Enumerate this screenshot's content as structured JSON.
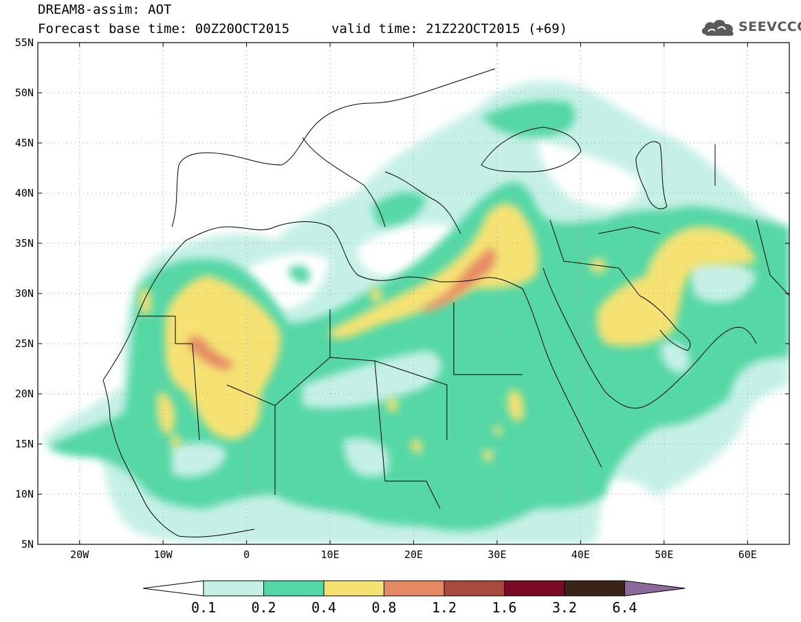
{
  "header": {
    "title_line1": "DREAM8-assim: AOT",
    "title_line2": "Forecast base time: 00Z20OCT2015",
    "valid_time": "valid time: 21Z22OCT2015 (+69)",
    "logo_text": "SEEVCCC",
    "logo_icon": "cloud-icon"
  },
  "map": {
    "lon_range": [
      -25,
      65
    ],
    "lat_range": [
      5,
      55
    ],
    "grid": "dotted",
    "lat_labels": [
      "55N",
      "50N",
      "45N",
      "40N",
      "35N",
      "30N",
      "25N",
      "20N",
      "15N",
      "10N",
      "5N"
    ],
    "lat_values": [
      55,
      50,
      45,
      40,
      35,
      30,
      25,
      20,
      15,
      10,
      5
    ],
    "lon_labels": [
      "20W",
      "10W",
      "0",
      "10E",
      "20E",
      "30E",
      "40E",
      "50E",
      "60E"
    ],
    "lon_values": [
      -20,
      -10,
      0,
      10,
      20,
      30,
      40,
      50,
      60
    ]
  },
  "colorbar": {
    "levels": [
      "0.1",
      "0.2",
      "0.4",
      "0.8",
      "1.2",
      "1.6",
      "3.2",
      "6.4"
    ],
    "colors": [
      "#ffffff",
      "#c6f0e6",
      "#54d7a6",
      "#f5e273",
      "#e58a65",
      "#a94a3e",
      "#7a0a28",
      "#3a2418",
      "#8e6a9c"
    ]
  }
}
